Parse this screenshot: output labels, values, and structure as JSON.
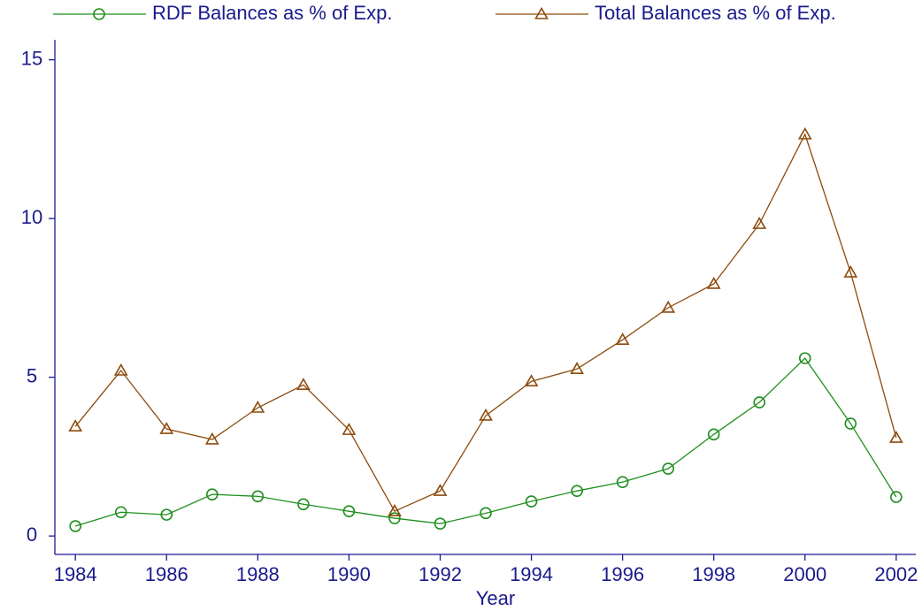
{
  "chart_data": {
    "type": "line",
    "x": [
      1984,
      1985,
      1986,
      1987,
      1988,
      1989,
      1990,
      1991,
      1992,
      1993,
      1994,
      1995,
      1996,
      1997,
      1998,
      1999,
      2000,
      2001,
      2002
    ],
    "x_label": "Year",
    "series": [
      {
        "name": "RDF Balances as % of Exp.",
        "color": "#1f8f1f",
        "marker": "circle",
        "values": [
          0.31,
          0.75,
          0.67,
          1.31,
          1.25,
          1.0,
          0.78,
          0.56,
          0.39,
          0.72,
          1.09,
          1.42,
          1.7,
          2.12,
          3.2,
          4.21,
          5.6,
          3.54,
          1.23
        ]
      },
      {
        "name": "Total Balances as % of Exp.",
        "color": "#8c4a0c",
        "marker": "triangle",
        "values": [
          3.45,
          5.21,
          3.37,
          3.04,
          4.04,
          4.76,
          3.34,
          0.78,
          1.42,
          3.79,
          4.87,
          5.26,
          6.18,
          7.19,
          7.94,
          9.83,
          12.65,
          8.3,
          3.09
        ]
      }
    ],
    "xlim": [
      1983.55,
      2002.43
    ],
    "xticks": [
      1984,
      1986,
      1988,
      1990,
      1992,
      1994,
      1996,
      1998,
      2000,
      2002
    ],
    "ylim": [
      -0.58,
      15.63
    ],
    "yticks": [
      0,
      5,
      10,
      15
    ],
    "legend": "top"
  }
}
